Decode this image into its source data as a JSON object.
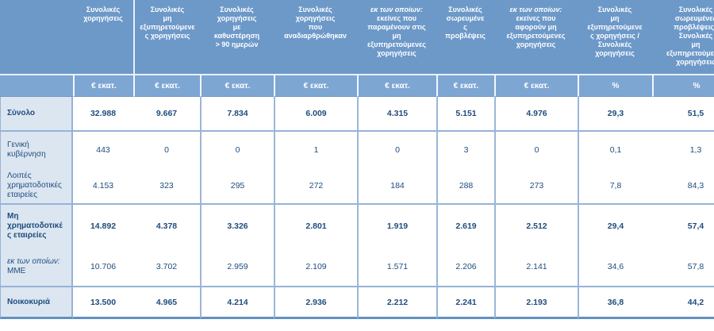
{
  "colors": {
    "header_bg": "#6d99c9",
    "units_bg": "#7da6d3",
    "row_label_bg": "#dce6f1",
    "text_navy": "#1f4c7d",
    "border_blue": "#95b3d7",
    "header_text": "#ffffff"
  },
  "table": {
    "columns": [
      {
        "header": "Συνολικές\nχορηγήσεις",
        "unit": "€ εκατ."
      },
      {
        "header": "Συνολικές\nμη\nεξυπηρετούμενε\nς χορηγήσεις",
        "unit": "€ εκατ."
      },
      {
        "header": "Συνολικές\nχορηγήσεις\nμε\nκαθυστέρηση\n> 90 ημερών",
        "unit": "€ εκατ."
      },
      {
        "header": "Συνολικές\nχορηγήσεις\nπου\nαναδιαρθρώθηκαν",
        "unit": "€ εκατ."
      },
      {
        "header_italic": "εκ των οποίων:",
        "header": "εκείνες που\nπαραμένουν στις\nμη\nεξυπηρετούμενες\nχορηγήσεις",
        "unit": "€ εκατ."
      },
      {
        "header": "Συνολικές\nσωρευμένε\nς\nπροβλέψεις",
        "unit": "€ εκατ."
      },
      {
        "header_italic": "εκ των οποίων:",
        "header": "εκείνες που\nαφορούν μη\nεξυπηρετούμενες\nχορηγήσεις",
        "unit": "€ εκατ."
      },
      {
        "header": "Συνολικές\nμη\nεξυπηρετούμενε\nς χορηγήσεις /\nΣυνολικές\nχορηγήσεις",
        "unit": "%"
      },
      {
        "header": "Συνολικές\nσωρευμένες\nπροβλέψεις /\nΣυνολικές\nμη\nεξυπηρετούμενες\nχορηγήσεις",
        "unit": "%"
      }
    ],
    "rows": [
      {
        "label": "Σύνολο",
        "bold": true,
        "values": [
          "32.988",
          "9.667",
          "7.834",
          "6.009",
          "4.315",
          "5.151",
          "4.976",
          "29,3",
          "51,5"
        ]
      },
      {
        "label": "Γενική\nκυβέρνηση",
        "bold": false,
        "values": [
          "443",
          "0",
          "0",
          "1",
          "0",
          "3",
          "0",
          "0,1",
          "1,3"
        ]
      },
      {
        "label": "Λοιπές\nχρηματοδοτικές\nεταιρείες",
        "bold": false,
        "values": [
          "4.153",
          "323",
          "295",
          "272",
          "184",
          "288",
          "273",
          "7,8",
          "84,3"
        ]
      },
      {
        "label": "Μη\nχρηματοδοτικέ\nς εταιρείες",
        "bold": true,
        "values": [
          "14.892",
          "4.378",
          "3.326",
          "2.801",
          "1.919",
          "2.619",
          "2.512",
          "29,4",
          "57,4"
        ]
      },
      {
        "label_italic": "εκ των οποίων:",
        "label": "ΜΜΕ",
        "bold": false,
        "values": [
          "10.706",
          "3.702",
          "2.959",
          "2.109",
          "1.571",
          "2.206",
          "2.141",
          "34,6",
          "57,8"
        ]
      },
      {
        "label": "Νοικοκυριά",
        "bold": true,
        "values": [
          "13.500",
          "4.965",
          "4.214",
          "2.936",
          "2.212",
          "2.241",
          "2.193",
          "36,8",
          "44,2"
        ]
      }
    ]
  }
}
